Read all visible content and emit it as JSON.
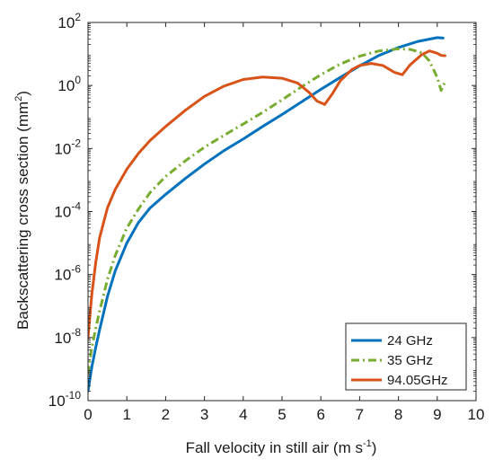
{
  "chart_data": {
    "type": "line",
    "xlabel": "Fall velocity in still air (m s",
    "xlabel_sup": "-1",
    "xlabel_end": ")",
    "ylabel": "Backscattering cross section (mm",
    "ylabel_sup": "2",
    "ylabel_end": ")",
    "xlim": [
      0,
      10
    ],
    "ylim": [
      1e-10,
      100
    ],
    "yscale": "log",
    "x_ticks": [
      0,
      1,
      2,
      3,
      4,
      5,
      6,
      7,
      8,
      9,
      10
    ],
    "x_tick_labels": [
      "0",
      "1",
      "2",
      "3",
      "4",
      "5",
      "6",
      "7",
      "8",
      "9",
      "10"
    ],
    "y_ticks": [
      {
        "value": 1e-10,
        "base": "10",
        "exp": "-10"
      },
      {
        "value": 1e-08,
        "base": "10",
        "exp": "-8"
      },
      {
        "value": 1e-06,
        "base": "10",
        "exp": "-6"
      },
      {
        "value": 0.0001,
        "base": "10",
        "exp": "-4"
      },
      {
        "value": 0.01,
        "base": "10",
        "exp": "-2"
      },
      {
        "value": 1,
        "base": "10",
        "exp": "0"
      },
      {
        "value": 100,
        "base": "10",
        "exp": "2"
      }
    ],
    "grid": false,
    "legend_position": "bottom-right",
    "series": [
      {
        "name": "24 GHz",
        "color": "#0072BD",
        "dash": "solid",
        "x": [
          0.0,
          0.05,
          0.1,
          0.2,
          0.3,
          0.5,
          0.7,
          1.0,
          1.3,
          1.6,
          2.0,
          2.5,
          3.0,
          3.5,
          4.0,
          4.5,
          5.0,
          5.5,
          6.0,
          6.5,
          7.0,
          7.5,
          8.0,
          8.5,
          9.0,
          9.15
        ],
        "y": [
          2e-10,
          5e-10,
          1.2e-09,
          5e-09,
          1.8e-08,
          2e-07,
          1.3e-06,
          1e-05,
          4.5e-05,
          0.00013,
          0.00035,
          0.0011,
          0.0032,
          0.0085,
          0.02,
          0.05,
          0.12,
          0.3,
          0.75,
          1.8,
          4.2,
          9,
          16,
          25,
          33,
          32
        ]
      },
      {
        "name": "35 GHz",
        "color": "#77AC30",
        "dash": "dashdot",
        "x": [
          0.0,
          0.05,
          0.1,
          0.2,
          0.3,
          0.5,
          0.7,
          1.0,
          1.3,
          1.6,
          2.0,
          2.5,
          3.0,
          3.5,
          4.0,
          4.5,
          5.0,
          5.5,
          6.0,
          6.5,
          7.0,
          7.5,
          8.0,
          8.3,
          8.6,
          8.8,
          9.0,
          9.1,
          9.2
        ],
        "y": [
          7e-10,
          2e-09,
          5e-09,
          2e-08,
          7e-08,
          7e-07,
          4e-06,
          3e-05,
          0.00012,
          0.0004,
          0.0013,
          0.004,
          0.011,
          0.026,
          0.06,
          0.14,
          0.35,
          0.9,
          2.2,
          4.8,
          8.5,
          12.5,
          14.5,
          14,
          11,
          6,
          1.8,
          0.7,
          1.3
        ]
      },
      {
        "name": "94.05GHz",
        "color": "#D95319",
        "dash": "solid",
        "x": [
          0.0,
          0.05,
          0.1,
          0.2,
          0.3,
          0.5,
          0.7,
          1.0,
          1.3,
          1.6,
          2.0,
          2.5,
          3.0,
          3.5,
          4.0,
          4.5,
          5.0,
          5.4,
          5.7,
          5.9,
          6.1,
          6.3,
          6.5,
          6.8,
          7.0,
          7.3,
          7.6,
          7.9,
          8.1,
          8.3,
          8.6,
          8.8,
          9.0,
          9.1,
          9.2
        ],
        "y": [
          1e-08,
          5e-08,
          2.5e-07,
          2.5e-06,
          1.5e-05,
          0.00013,
          0.0005,
          0.0022,
          0.007,
          0.018,
          0.05,
          0.16,
          0.45,
          0.95,
          1.55,
          1.85,
          1.7,
          1.2,
          0.6,
          0.32,
          0.25,
          0.55,
          1.4,
          3.2,
          4.3,
          5.0,
          4.3,
          2.6,
          2.2,
          4.5,
          9.5,
          12.5,
          10.5,
          9,
          8.8
        ]
      }
    ]
  }
}
